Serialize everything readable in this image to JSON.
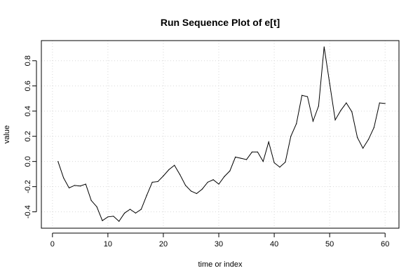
{
  "chart_data": {
    "type": "line",
    "title": "Run Sequence Plot of e[t]",
    "xlabel": "time or index",
    "ylabel": "value",
    "xlim": [
      -2,
      62.5
    ],
    "ylim": [
      -0.53,
      0.96
    ],
    "x_ticks": [
      0,
      10,
      20,
      30,
      40,
      50,
      60
    ],
    "x_tick_labels": [
      "0",
      "10",
      "20",
      "30",
      "40",
      "50",
      "60"
    ],
    "y_ticks": [
      -0.4,
      -0.2,
      0.0,
      0.2,
      0.4,
      0.6,
      0.8
    ],
    "y_tick_labels": [
      "-0.4",
      "-0.2",
      "0.0",
      "0.2",
      "0.4",
      "0.6",
      "0.8"
    ],
    "grid": true,
    "series": [
      {
        "x": [
          1,
          2,
          3,
          4,
          5,
          6,
          7,
          8,
          9,
          10,
          11,
          12,
          13,
          14,
          15,
          16,
          17,
          18,
          19,
          20,
          21,
          22,
          23,
          24,
          25,
          26,
          27,
          28,
          29,
          30,
          31,
          32,
          33,
          34,
          35,
          36,
          37,
          38,
          39,
          40,
          41,
          42,
          43,
          44,
          45,
          46,
          47,
          48,
          49,
          50,
          51,
          52,
          53,
          54,
          55,
          56,
          57,
          58,
          59,
          60
        ],
        "values": [
          0.0,
          -0.13,
          -0.21,
          -0.19,
          -0.195,
          -0.18,
          -0.31,
          -0.36,
          -0.47,
          -0.44,
          -0.435,
          -0.475,
          -0.41,
          -0.38,
          -0.41,
          -0.38,
          -0.27,
          -0.165,
          -0.16,
          -0.115,
          -0.065,
          -0.03,
          -0.105,
          -0.19,
          -0.235,
          -0.255,
          -0.22,
          -0.165,
          -0.145,
          -0.18,
          -0.12,
          -0.075,
          0.035,
          0.025,
          0.015,
          0.075,
          0.075,
          0.0,
          0.155,
          -0.01,
          -0.045,
          -0.005,
          0.2,
          0.3,
          0.525,
          0.515,
          0.32,
          0.44,
          0.91,
          0.62,
          0.33,
          0.405,
          0.465,
          0.395,
          0.19,
          0.105,
          0.175,
          0.27,
          0.465,
          0.46
        ]
      }
    ]
  }
}
